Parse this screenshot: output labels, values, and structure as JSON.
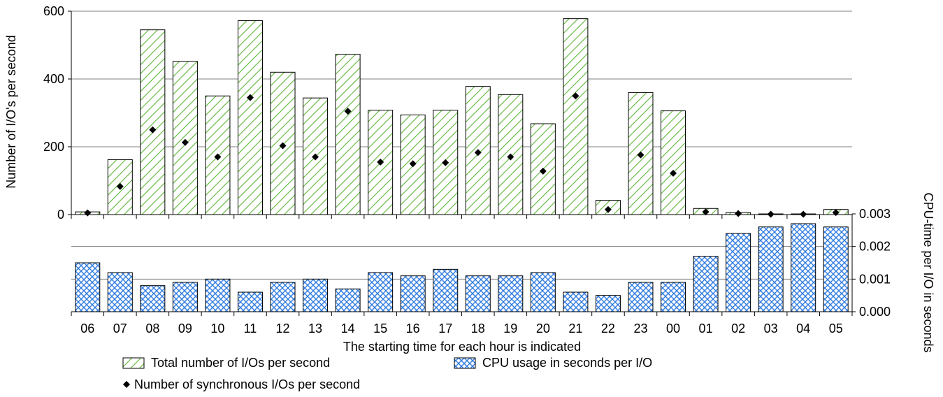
{
  "chart_data": [
    {
      "type": "bar",
      "panel": "top",
      "categories": [
        "06",
        "07",
        "08",
        "09",
        "10",
        "11",
        "12",
        "13",
        "14",
        "15",
        "16",
        "17",
        "18",
        "19",
        "20",
        "21",
        "22",
        "23",
        "00",
        "01",
        "02",
        "03",
        "04",
        "05"
      ],
      "ylabel": "Number of I/O's per second",
      "ylim": [
        0,
        600
      ],
      "yticks": [
        0,
        200,
        400,
        600
      ],
      "grid": true,
      "series": [
        {
          "name": "Total number of I/Os per second",
          "kind": "bar",
          "pattern": "green-diagonal-hatch",
          "values": [
            8,
            162,
            545,
            452,
            350,
            572,
            420,
            344,
            473,
            308,
            294,
            308,
            378,
            354,
            268,
            578,
            42,
            360,
            306,
            18,
            6,
            2,
            2,
            15
          ]
        },
        {
          "name": "Number of synchronous I/Os per second",
          "kind": "marker",
          "marker": "diamond",
          "values": [
            5,
            83,
            250,
            213,
            170,
            345,
            203,
            170,
            305,
            155,
            150,
            153,
            183,
            170,
            128,
            350,
            15,
            176,
            122,
            8,
            3,
            1,
            1,
            6
          ]
        }
      ]
    },
    {
      "type": "bar",
      "panel": "bottom",
      "categories": [
        "06",
        "07",
        "08",
        "09",
        "10",
        "11",
        "12",
        "13",
        "14",
        "15",
        "16",
        "17",
        "18",
        "19",
        "20",
        "21",
        "22",
        "23",
        "00",
        "01",
        "02",
        "03",
        "04",
        "05"
      ],
      "xlabel": "The starting time for each hour is indicated",
      "ylabel": "CPU-time per I/O in seconds",
      "ylim": [
        0,
        0.003
      ],
      "yticks": [
        "0.000",
        "0.001",
        "0.002",
        "0.003"
      ],
      "grid": true,
      "series": [
        {
          "name": "CPU usage in seconds per I/O",
          "kind": "bar",
          "pattern": "blue-crosshatch",
          "values": [
            0.0015,
            0.0012,
            0.0008,
            0.0009,
            0.001,
            0.0006,
            0.0009,
            0.001,
            0.0007,
            0.0012,
            0.0011,
            0.0013,
            0.0011,
            0.0011,
            0.0012,
            0.0006,
            0.0005,
            0.0009,
            0.0009,
            0.0017,
            0.0024,
            0.0026,
            0.0027,
            0.0026
          ]
        }
      ]
    }
  ],
  "legend": {
    "placement": "bottom",
    "total_label": "Total number of I/Os per second",
    "cpu_label": "CPU usage in seconds per I/O",
    "sync_label": "Number of synchronous I/Os per second"
  },
  "colors": {
    "green_hatch": "#66bb44",
    "blue_hatch": "#2f7be0",
    "marker": "#000000",
    "grid": "#808080"
  }
}
